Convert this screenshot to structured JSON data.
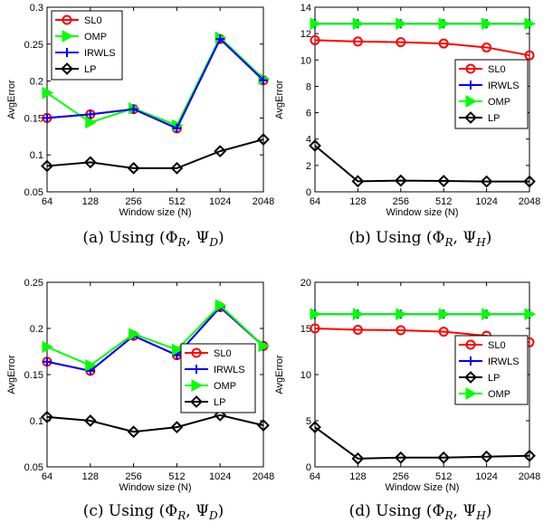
{
  "chart_data": [
    {
      "type": "line",
      "caption": "(a) Using (Φ_R, Ψ_D)",
      "caption_parts": {
        "prefix": "(a) Using (",
        "phi": "Φ",
        "phi_sub": "R",
        "sep": ", ",
        "psi": "Ψ",
        "psi_sub": "D",
        "suffix": ")"
      },
      "xlabel": "Window size (N)",
      "ylabel": "AvgError",
      "categories": [
        "64",
        "128",
        "256",
        "512",
        "1024",
        "2048"
      ],
      "ylim": [
        0.05,
        0.3
      ],
      "yticks": [
        "0.05",
        "0.1",
        "0.15",
        "0.2",
        "0.25",
        "0.3"
      ],
      "legend_position": "top-left",
      "series": [
        {
          "name": "SL0",
          "color": "#ff0000",
          "marker": "circle",
          "values": [
            0.15,
            0.155,
            0.162,
            0.136,
            0.257,
            0.201
          ]
        },
        {
          "name": "OMP",
          "color": "#00ff00",
          "marker": "triangle",
          "values": [
            0.184,
            0.144,
            0.163,
            0.14,
            0.259,
            0.203
          ]
        },
        {
          "name": "IRWLS",
          "color": "#0000ff",
          "marker": "plus",
          "values": [
            0.15,
            0.155,
            0.162,
            0.136,
            0.257,
            0.201
          ]
        },
        {
          "name": "LP",
          "color": "#000000",
          "marker": "diamond",
          "values": [
            0.085,
            0.09,
            0.082,
            0.082,
            0.105,
            0.121
          ]
        }
      ]
    },
    {
      "type": "line",
      "caption": "(b) Using (Φ_R, Ψ_H)",
      "caption_parts": {
        "prefix": "(b) Using (",
        "phi": "Φ",
        "phi_sub": "R",
        "sep": ", ",
        "psi": "Ψ",
        "psi_sub": "H",
        "suffix": ")"
      },
      "xlabel": "Window size (N)",
      "ylabel": "AvgError",
      "categories": [
        "64",
        "128",
        "256",
        "512",
        "1024",
        "2048"
      ],
      "ylim": [
        0,
        14
      ],
      "yticks": [
        "0",
        "2",
        "4",
        "6",
        "8",
        "10",
        "12",
        "14"
      ],
      "legend_position": "center-right",
      "series": [
        {
          "name": "SL0",
          "color": "#ff0000",
          "marker": "circle",
          "values": [
            11.5,
            11.4,
            11.35,
            11.25,
            10.95,
            10.35
          ]
        },
        {
          "name": "IRWLS",
          "color": "#0000ff",
          "marker": "plus",
          "values": [
            12.75,
            12.75,
            12.75,
            12.75,
            12.75,
            12.75
          ]
        },
        {
          "name": "OMP",
          "color": "#00ff00",
          "marker": "triangle",
          "values": [
            12.75,
            12.75,
            12.75,
            12.75,
            12.75,
            12.75
          ]
        },
        {
          "name": "LP",
          "color": "#000000",
          "marker": "diamond",
          "values": [
            3.5,
            0.8,
            0.85,
            0.82,
            0.78,
            0.78
          ]
        }
      ]
    },
    {
      "type": "line",
      "caption": "(c) Using (Φ_R, Ψ_D)",
      "caption_parts": {
        "prefix": "(c) Using (",
        "phi": "Φ",
        "phi_sub": "R",
        "sep": ", ",
        "psi": "Ψ",
        "psi_sub": "D",
        "suffix": ")"
      },
      "xlabel": "Window size (N)",
      "ylabel": "AvgError",
      "categories": [
        "64",
        "128",
        "256",
        "512",
        "1024",
        "2048"
      ],
      "ylim": [
        0.05,
        0.25
      ],
      "yticks": [
        "0.05",
        "0.1",
        "0.15",
        "0.2",
        "0.25"
      ],
      "legend_position": "center-right",
      "series": [
        {
          "name": "SL0",
          "color": "#ff0000",
          "marker": "circle",
          "values": [
            0.164,
            0.154,
            0.192,
            0.171,
            0.223,
            0.181
          ]
        },
        {
          "name": "IRWLS",
          "color": "#0000ff",
          "marker": "plus",
          "values": [
            0.164,
            0.154,
            0.192,
            0.171,
            0.223,
            0.181
          ]
        },
        {
          "name": "OMP",
          "color": "#00ff00",
          "marker": "triangle",
          "values": [
            0.18,
            0.16,
            0.194,
            0.177,
            0.225,
            0.181
          ]
        },
        {
          "name": "LP",
          "color": "#000000",
          "marker": "diamond",
          "values": [
            0.104,
            0.1,
            0.088,
            0.093,
            0.106,
            0.095
          ]
        }
      ]
    },
    {
      "type": "line",
      "caption": "(d) Using (Φ_R, Ψ_H)",
      "caption_parts": {
        "prefix": "(d) Using (",
        "phi": "Φ",
        "phi_sub": "R",
        "sep": ", ",
        "psi": "Ψ",
        "psi_sub": "H",
        "suffix": ")"
      },
      "xlabel": "Window Size (N)",
      "ylabel": "AvgError",
      "categories": [
        "64",
        "128",
        "256",
        "512",
        "1024",
        "2048"
      ],
      "ylim": [
        0,
        20
      ],
      "yticks": [
        "0",
        "5",
        "10",
        "15",
        "20"
      ],
      "legend_position": "center-right",
      "series": [
        {
          "name": "SL0",
          "color": "#ff0000",
          "marker": "circle",
          "values": [
            15.0,
            14.85,
            14.8,
            14.65,
            14.2,
            13.5
          ]
        },
        {
          "name": "IRWLS",
          "color": "#0000ff",
          "marker": "plus",
          "values": [
            16.55,
            16.55,
            16.55,
            16.55,
            16.55,
            16.55
          ]
        },
        {
          "name": "LP",
          "color": "#000000",
          "marker": "diamond",
          "values": [
            4.3,
            0.9,
            1.0,
            1.0,
            1.1,
            1.2
          ]
        },
        {
          "name": "OMP",
          "color": "#00ff00",
          "marker": "triangle",
          "values": [
            16.55,
            16.55,
            16.55,
            16.55,
            16.55,
            16.55
          ]
        }
      ]
    }
  ]
}
